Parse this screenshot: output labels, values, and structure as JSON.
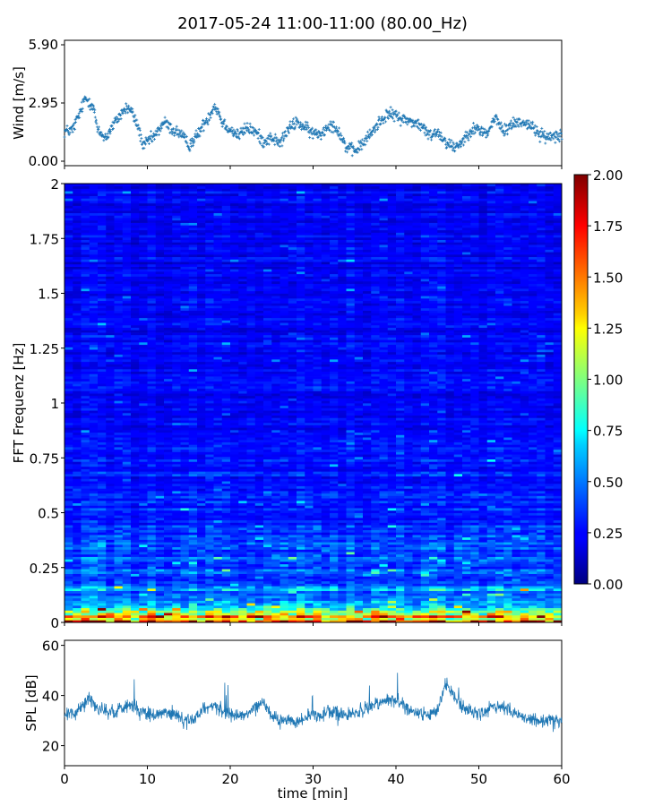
{
  "title": "2017-05-24 11:00-11:00 (80.00_Hz)",
  "chart_data": [
    {
      "type": "scatter",
      "panel": "wind",
      "ylabel": "Wind [m/s]",
      "ylim": [
        0.0,
        5.9
      ],
      "yticks": [
        "0.00",
        "2.95",
        "5.90"
      ],
      "xlim": [
        0,
        60
      ],
      "color": "#1f77b4",
      "marker": "+",
      "series": [
        {
          "x": [
            0,
            1,
            2,
            2.5,
            3,
            3.5,
            4,
            5,
            6,
            7,
            7.5,
            8,
            9,
            9.5,
            10,
            11,
            12,
            13,
            14,
            15,
            16,
            17,
            17.5,
            18,
            18.5,
            19,
            20,
            21,
            22,
            23,
            24,
            25,
            26,
            27,
            28,
            29,
            30,
            31,
            32,
            33,
            34,
            35,
            36,
            37,
            38,
            39,
            40,
            41,
            42,
            43,
            44,
            45,
            46,
            47,
            48,
            49,
            50,
            51,
            52,
            53,
            54,
            55,
            56,
            57,
            58,
            59,
            60
          ],
          "y": [
            1.5,
            1.6,
            2.6,
            3.2,
            3.0,
            2.8,
            1.5,
            1.2,
            1.9,
            2.5,
            2.7,
            2.6,
            1.6,
            0.7,
            1.0,
            1.3,
            2.0,
            1.6,
            1.4,
            0.8,
            1.3,
            2.0,
            2.3,
            2.8,
            2.6,
            2.0,
            1.6,
            1.3,
            1.7,
            1.5,
            1.0,
            1.2,
            0.9,
            1.6,
            2.0,
            1.7,
            1.4,
            1.4,
            1.9,
            1.6,
            0.7,
            0.5,
            0.9,
            1.4,
            2.0,
            2.4,
            2.3,
            2.1,
            2.0,
            1.8,
            1.3,
            1.5,
            1.0,
            0.7,
            1.0,
            1.6,
            1.6,
            1.4,
            2.2,
            1.5,
            1.9,
            2.0,
            1.9,
            1.5,
            1.2,
            1.3,
            1.4
          ]
        }
      ]
    },
    {
      "type": "heatmap",
      "panel": "spectrogram",
      "ylabel": "FFT Frequenz [Hz]",
      "ylim": [
        0,
        2
      ],
      "yticks": [
        "0",
        "0.25",
        "0.5",
        "0.75",
        "1",
        "1.25",
        "1.5",
        "1.75",
        "2"
      ],
      "xlim": [
        0,
        60
      ],
      "colormap": "jet",
      "colorbar": {
        "range": [
          0.0,
          2.0
        ],
        "ticks": [
          "0.00",
          "0.25",
          "0.50",
          "0.75",
          "1.00",
          "1.25",
          "1.50",
          "1.75",
          "2.00"
        ]
      },
      "frequency_profile": {
        "freq_hz": [
          0.0,
          0.02,
          0.05,
          0.1,
          0.2,
          0.3,
          0.5,
          0.75,
          1.0,
          1.5,
          2.0
        ],
        "typical_value": [
          1.9,
          1.4,
          0.9,
          0.6,
          0.45,
          0.4,
          0.32,
          0.27,
          0.24,
          0.22,
          0.22
        ]
      }
    },
    {
      "type": "line",
      "panel": "spl",
      "ylabel": "SPL [dB]",
      "xlabel": "time [min]",
      "xlim": [
        0,
        60
      ],
      "xticks": [
        "0",
        "10",
        "20",
        "30",
        "40",
        "50",
        "60"
      ],
      "ylim": [
        12,
        62
      ],
      "yticks": [
        "20",
        "40",
        "60"
      ],
      "color": "#1f77b4",
      "series": [
        {
          "x": [
            0,
            1,
            2,
            3,
            4,
            5,
            6,
            7,
            8,
            9,
            10,
            11,
            12,
            13,
            14,
            15,
            16,
            17,
            18,
            19,
            20,
            21,
            22,
            23,
            24,
            25,
            26,
            27,
            28,
            29,
            30,
            31,
            32,
            33,
            34,
            35,
            36,
            37,
            38,
            39,
            40,
            41,
            42,
            43,
            44,
            45,
            46,
            47,
            48,
            49,
            50,
            51,
            52,
            53,
            54,
            55,
            56,
            57,
            58,
            59,
            60
          ],
          "y": [
            33,
            32,
            36,
            39,
            35,
            34,
            33,
            35,
            37,
            34,
            33,
            32,
            34,
            33,
            31,
            30,
            32,
            35,
            36,
            34,
            33,
            31,
            33,
            35,
            38,
            32,
            30,
            31,
            29,
            31,
            33,
            32,
            34,
            33,
            32,
            33,
            34,
            35,
            37,
            39,
            38,
            36,
            34,
            33,
            32,
            33,
            45,
            40,
            35,
            34,
            33,
            34,
            36,
            35,
            33,
            32,
            31,
            30,
            30,
            31,
            30
          ]
        }
      ]
    }
  ]
}
